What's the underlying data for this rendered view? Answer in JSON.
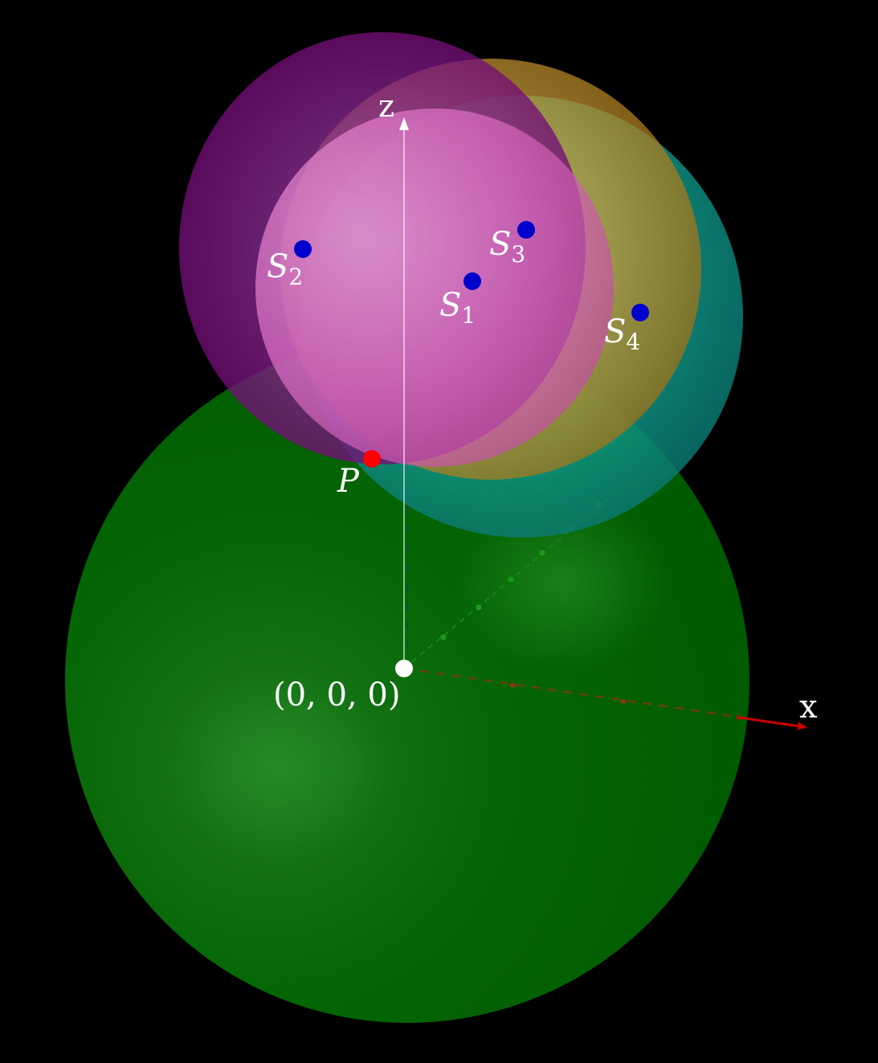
{
  "colors": {
    "background": "#000000",
    "sphere_origin": "#006400",
    "sphere_s1": "#ee82ee",
    "sphere_s2": "#800080",
    "sphere_s3": "#b8860b",
    "sphere_s4": "#008b8b",
    "axis_x": "#cc0000",
    "axis_y": "#1a8a1a",
    "axis_z": "#ffffff",
    "point_s": "#0000cc",
    "point_p": "#ff0000",
    "point_origin": "#ffffff"
  },
  "axes": {
    "x_label": "x",
    "z_label": "z"
  },
  "points": {
    "origin": {
      "label": "(0, 0, 0)"
    },
    "p": {
      "label": "P"
    },
    "s1": {
      "label": "S",
      "subscript": "1"
    },
    "s2": {
      "label": "S",
      "subscript": "2"
    },
    "s3": {
      "label": "S",
      "subscript": "3"
    },
    "s4": {
      "label": "S",
      "subscript": "4"
    }
  }
}
